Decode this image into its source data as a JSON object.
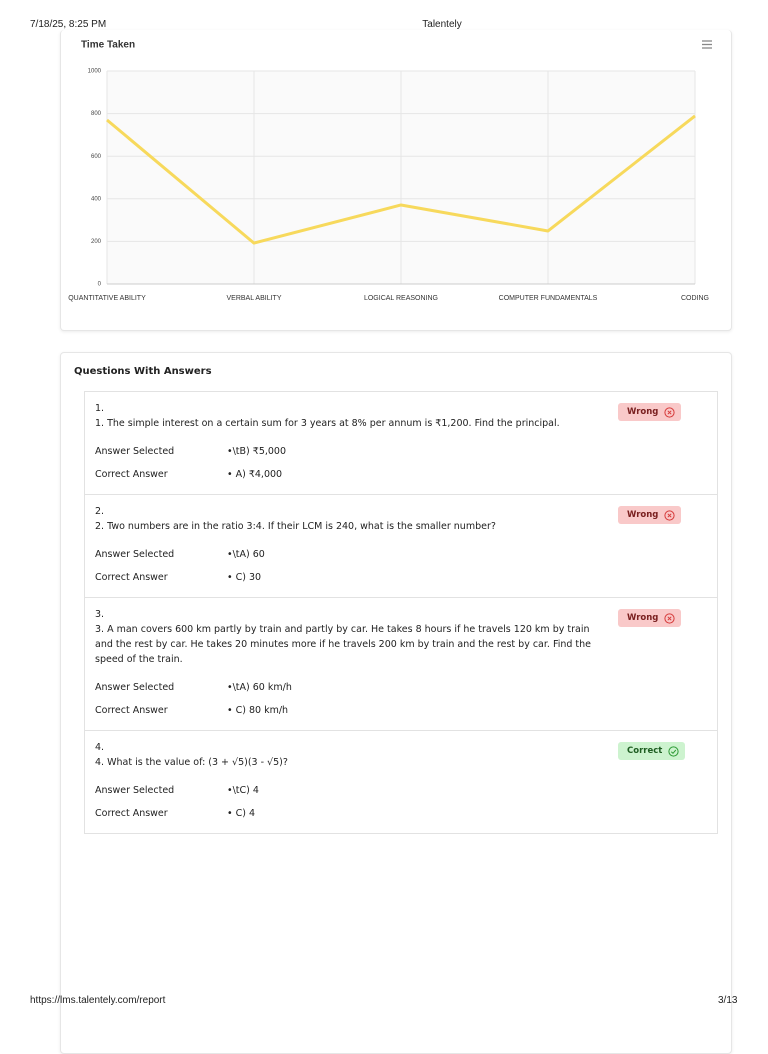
{
  "header": {
    "datetime": "7/18/25, 8:25 PM",
    "site": "Talentely"
  },
  "chart_data": {
    "type": "line",
    "title": "Time Taken",
    "categories": [
      "QUANTITATIVE ABILITY",
      "VERBAL ABILITY",
      "LOGICAL REASONING",
      "COMPUTER FUNDAMENTALS",
      "CODING"
    ],
    "values": [
      770,
      192,
      371,
      249,
      789
    ],
    "color": "#f7d95c",
    "ylim": [
      0,
      1000
    ],
    "yticks": [
      0,
      200,
      400,
      600,
      800,
      1000
    ],
    "grid": true
  },
  "questions_section": {
    "title": "Questions With Answers",
    "questions": [
      {
        "number": "1.",
        "text": "1. The simple interest on a certain sum for 3 years at 8% per annum is ₹1,200. Find the principal.",
        "status": "Wrong",
        "selected_label": "Answer Selected",
        "selected": "•\\tB) ₹5,000",
        "correct_label": "Correct Answer",
        "correct": "• A) ₹4,000"
      },
      {
        "number": "2.",
        "text": "2. Two numbers are in the ratio 3:4. If their LCM is 240, what is the smaller number?",
        "status": "Wrong",
        "selected_label": "Answer Selected",
        "selected": "•\\tA) 60",
        "correct_label": "Correct Answer",
        "correct": "• C) 30"
      },
      {
        "number": "3.",
        "text": "3. A man covers 600 km partly by train and partly by car. He takes 8 hours if he travels 120 km by train and the rest by car. He takes 20 minutes more if he travels 200 km by train and the rest by car. Find the speed of the train.",
        "status": "Wrong",
        "selected_label": "Answer Selected",
        "selected": "•\\tA) 60 km/h",
        "correct_label": "Correct Answer",
        "correct": "• C) 80 km/h"
      },
      {
        "number": "4.",
        "text": "4. What is the value of: (3 + √5)(3 - √5)?",
        "status": "Correct",
        "selected_label": "Answer Selected",
        "selected": "•\\tC) 4",
        "correct_label": "Correct Answer",
        "correct": "• C) 4"
      }
    ]
  },
  "footer": {
    "url": "https://lms.talentely.com/report",
    "page": "3/13"
  }
}
